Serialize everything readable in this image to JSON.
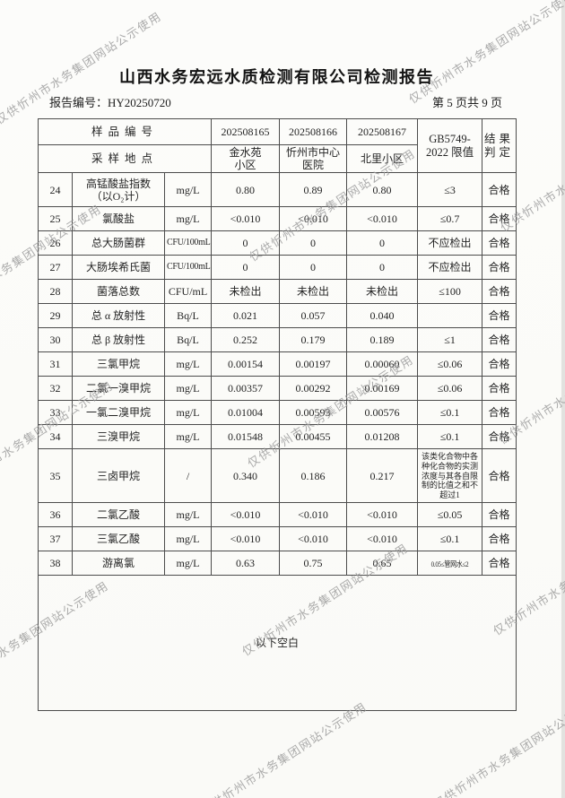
{
  "watermark": {
    "text": "仅供忻州市水务集团网站公示使用"
  },
  "header": {
    "title": "山西水务宏远水质检测有限公司检测报告",
    "report_no_label": "报告编号：",
    "report_no": "HY20250720",
    "page_info": "第 5 页共 9 页"
  },
  "table": {
    "header": {
      "sample_id_label": "样品编号",
      "location_label": "采样地点",
      "sample_ids": [
        "202508165",
        "202508166",
        "202508167"
      ],
      "locations": [
        "金水苑\n小区",
        "忻州市中心\n医院",
        "北里小区"
      ],
      "limit_label": "GB5749-\n2022 限值",
      "result_label": "结果\n判定"
    },
    "rows": [
      {
        "no": "24",
        "name": "高锰酸盐指数\n（以O₂计）",
        "unit": "mg/L",
        "v1": "0.80",
        "v2": "0.89",
        "v3": "0.80",
        "limit": "≤3",
        "result": "合格"
      },
      {
        "no": "25",
        "name": "氯酸盐",
        "unit": "mg/L",
        "v1": "<0.010",
        "v2": "<0.010",
        "v3": "<0.010",
        "limit": "≤0.7",
        "result": "合格"
      },
      {
        "no": "26",
        "name": "总大肠菌群",
        "unit": "CFU/100mL",
        "v1": "0",
        "v2": "0",
        "v3": "0",
        "limit": "不应检出",
        "result": "合格"
      },
      {
        "no": "27",
        "name": "大肠埃希氏菌",
        "unit": "CFU/100mL",
        "v1": "0",
        "v2": "0",
        "v3": "0",
        "limit": "不应检出",
        "result": "合格"
      },
      {
        "no": "28",
        "name": "菌落总数",
        "unit": "CFU/mL",
        "v1": "未检出",
        "v2": "未检出",
        "v3": "未检出",
        "limit": "≤100",
        "result": "合格"
      },
      {
        "no": "29",
        "name": "总 α 放射性",
        "unit": "Bq/L",
        "v1": "0.021",
        "v2": "0.057",
        "v3": "0.040",
        "limit": "",
        "result": "合格"
      },
      {
        "no": "30",
        "name": "总 β 放射性",
        "unit": "Bq/L",
        "v1": "0.252",
        "v2": "0.179",
        "v3": "0.189",
        "limit": "≤1",
        "result": "合格"
      },
      {
        "no": "31",
        "name": "三氯甲烷",
        "unit": "mg/L",
        "v1": "0.00154",
        "v2": "0.00197",
        "v3": "0.00060",
        "limit": "≤0.06",
        "result": "合格"
      },
      {
        "no": "32",
        "name": "二氯一溴甲烷",
        "unit": "mg/L",
        "v1": "0.00357",
        "v2": "0.00292",
        "v3": "0.00169",
        "limit": "≤0.06",
        "result": "合格"
      },
      {
        "no": "33",
        "name": "一氯二溴甲烷",
        "unit": "mg/L",
        "v1": "0.01004",
        "v2": "0.00593",
        "v3": "0.00576",
        "limit": "≤0.1",
        "result": "合格"
      },
      {
        "no": "34",
        "name": "三溴甲烷",
        "unit": "mg/L",
        "v1": "0.01548",
        "v2": "0.00455",
        "v3": "0.01208",
        "limit": "≤0.1",
        "result": "合格"
      },
      {
        "no": "35",
        "name": "三卤甲烷",
        "unit": "/",
        "v1": "0.340",
        "v2": "0.186",
        "v3": "0.217",
        "limit": "该类化合物中各种化合物的实测浓度与其各自限制的比值之和不超过1",
        "result": "合格"
      },
      {
        "no": "36",
        "name": "二氯乙酸",
        "unit": "mg/L",
        "v1": "<0.010",
        "v2": "<0.010",
        "v3": "<0.010",
        "limit": "≤0.05",
        "result": "合格"
      },
      {
        "no": "37",
        "name": "三氯乙酸",
        "unit": "mg/L",
        "v1": "<0.010",
        "v2": "<0.010",
        "v3": "<0.010",
        "limit": "≤0.1",
        "result": "合格"
      },
      {
        "no": "38",
        "name": "游离氯",
        "unit": "mg/L",
        "v1": "0.63",
        "v2": "0.75",
        "v3": "0.65",
        "limit": "0.05≤管网水≤2",
        "result": "合格"
      }
    ],
    "footer_note": "以下空白"
  }
}
